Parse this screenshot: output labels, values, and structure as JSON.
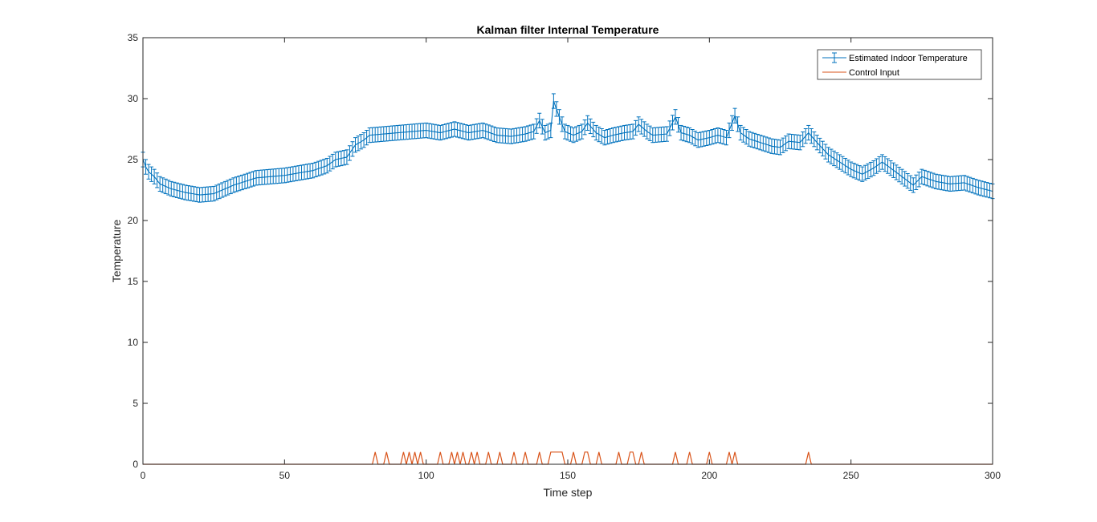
{
  "chart_data": {
    "type": "line",
    "title": "Kalman filter Internal Temperature",
    "xlabel": "Time step",
    "ylabel": "Temperature",
    "xlim": [
      0,
      300
    ],
    "ylim": [
      0,
      35
    ],
    "xticks": [
      "0",
      "50",
      "100",
      "150",
      "200",
      "250",
      "300"
    ],
    "yticks": [
      "0",
      "5",
      "10",
      "15",
      "20",
      "25",
      "30",
      "35"
    ],
    "grid": false,
    "legend_position": "top-right",
    "colors": {
      "temperature": "#0072BD",
      "control": "#D95319",
      "axes": "#262626"
    },
    "series": [
      {
        "name": "Estimated Indoor Temperature",
        "kind": "errorbar",
        "error": 0.6,
        "keypoints": [
          [
            0,
            25.0
          ],
          [
            1,
            24.4
          ],
          [
            2,
            24.0
          ],
          [
            4,
            23.6
          ],
          [
            6,
            23.0
          ],
          [
            10,
            22.6
          ],
          [
            15,
            22.3
          ],
          [
            20,
            22.1
          ],
          [
            25,
            22.2
          ],
          [
            28,
            22.5
          ],
          [
            32,
            22.9
          ],
          [
            36,
            23.2
          ],
          [
            40,
            23.5
          ],
          [
            45,
            23.6
          ],
          [
            50,
            23.7
          ],
          [
            55,
            23.9
          ],
          [
            60,
            24.1
          ],
          [
            65,
            24.5
          ],
          [
            68,
            25.0
          ],
          [
            72,
            25.2
          ],
          [
            75,
            26.2
          ],
          [
            78,
            26.6
          ],
          [
            80,
            27.0
          ],
          [
            85,
            27.1
          ],
          [
            90,
            27.2
          ],
          [
            95,
            27.3
          ],
          [
            100,
            27.4
          ],
          [
            105,
            27.2
          ],
          [
            110,
            27.5
          ],
          [
            115,
            27.2
          ],
          [
            120,
            27.4
          ],
          [
            125,
            27.0
          ],
          [
            130,
            26.9
          ],
          [
            135,
            27.1
          ],
          [
            138,
            27.3
          ],
          [
            140,
            28.2
          ],
          [
            142,
            27.2
          ],
          [
            144,
            27.4
          ],
          [
            145,
            29.8
          ],
          [
            147,
            28.5
          ],
          [
            149,
            27.3
          ],
          [
            152,
            27.0
          ],
          [
            155,
            27.3
          ],
          [
            157,
            28.0
          ],
          [
            160,
            27.2
          ],
          [
            163,
            26.8
          ],
          [
            166,
            27.0
          ],
          [
            170,
            27.2
          ],
          [
            173,
            27.3
          ],
          [
            175,
            27.9
          ],
          [
            178,
            27.3
          ],
          [
            180,
            27.0
          ],
          [
            185,
            27.1
          ],
          [
            188,
            28.5
          ],
          [
            190,
            27.2
          ],
          [
            193,
            27.0
          ],
          [
            196,
            26.6
          ],
          [
            200,
            26.8
          ],
          [
            203,
            27.0
          ],
          [
            206,
            26.8
          ],
          [
            208,
            28.0
          ],
          [
            209,
            28.6
          ],
          [
            211,
            27.2
          ],
          [
            214,
            26.7
          ],
          [
            218,
            26.4
          ],
          [
            222,
            26.1
          ],
          [
            225,
            26.0
          ],
          [
            228,
            26.5
          ],
          [
            232,
            26.4
          ],
          [
            235,
            27.2
          ],
          [
            238,
            26.4
          ],
          [
            242,
            25.4
          ],
          [
            246,
            24.8
          ],
          [
            250,
            24.2
          ],
          [
            254,
            23.8
          ],
          [
            258,
            24.3
          ],
          [
            261,
            24.8
          ],
          [
            264,
            24.3
          ],
          [
            268,
            23.6
          ],
          [
            272,
            22.9
          ],
          [
            275,
            23.6
          ],
          [
            280,
            23.2
          ],
          [
            285,
            23.0
          ],
          [
            290,
            23.1
          ],
          [
            295,
            22.7
          ],
          [
            300,
            22.4
          ]
        ]
      },
      {
        "name": "Control Input",
        "kind": "pulses",
        "amplitude": 1,
        "pulse_steps": [
          82,
          86,
          92,
          94,
          96,
          98,
          105,
          109,
          111,
          113,
          116,
          118,
          122,
          126,
          131,
          135,
          140,
          144,
          145,
          146,
          147,
          148,
          152,
          156,
          157,
          161,
          168,
          172,
          173,
          176,
          188,
          193,
          200,
          207,
          209,
          235
        ]
      }
    ]
  }
}
